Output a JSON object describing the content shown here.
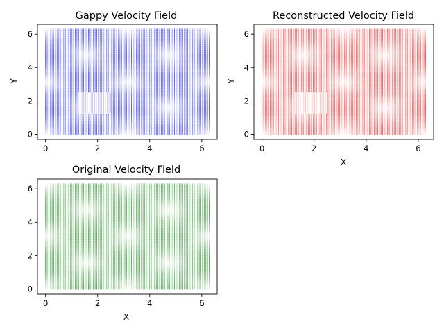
{
  "chart_data": [
    {
      "type": "vector-field",
      "title": "Gappy Velocity Field",
      "xlabel": "",
      "ylabel": "Y",
      "color": "#0000ff",
      "xlim": [
        -0.31,
        6.59
      ],
      "ylim": [
        -0.31,
        6.59
      ],
      "xticks": [
        0,
        2,
        4,
        6
      ],
      "yticks": [
        0,
        2,
        4,
        6
      ],
      "grid": false,
      "gap": {
        "x": [
          1.26,
          2.51
        ],
        "y": [
          1.26,
          2.51
        ]
      }
    },
    {
      "type": "vector-field",
      "title": "Reconstructed Velocity Field",
      "xlabel": "X",
      "ylabel": "Y",
      "color": "#ff0000",
      "xlim": [
        -0.31,
        6.59
      ],
      "ylim": [
        -0.31,
        6.59
      ],
      "xticks": [
        0,
        2,
        4,
        6
      ],
      "yticks": [
        0,
        2,
        4,
        6
      ],
      "grid": false,
      "gap": {
        "x": [
          1.26,
          2.51
        ],
        "y": [
          1.26,
          2.51
        ]
      }
    },
    {
      "type": "vector-field",
      "title": "Original Velocity Field",
      "xlabel": "X",
      "ylabel": "",
      "color": "#008000",
      "xlim": [
        -0.31,
        6.59
      ],
      "ylim": [
        -0.31,
        6.59
      ],
      "xticks": [
        0,
        2,
        4,
        6
      ],
      "yticks": [
        0,
        2,
        4,
        6
      ],
      "grid": false,
      "gap": null
    }
  ]
}
